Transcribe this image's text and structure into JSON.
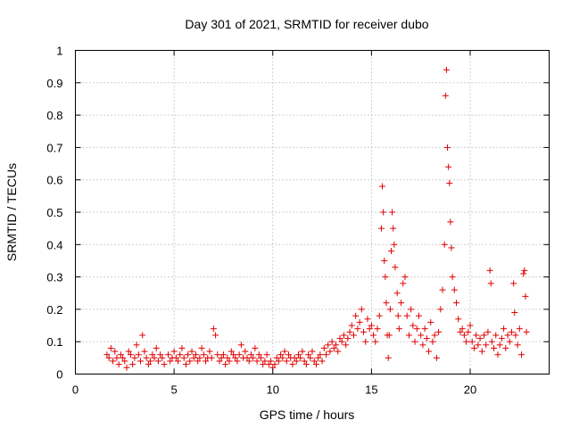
{
  "chart_data": {
    "type": "scatter",
    "title": "Day 301 of 2021, SRMTID for receiver dubo",
    "xlabel": "GPS time / hours",
    "ylabel": "SRMTID / TECUs",
    "xlim": [
      0,
      24
    ],
    "ylim": [
      0,
      1
    ],
    "xticks": [
      0,
      5,
      10,
      15,
      20
    ],
    "xtick_labels": [
      "0",
      "5",
      "10",
      "15",
      "20"
    ],
    "yticks": [
      0,
      0.1,
      0.2,
      0.3,
      0.4,
      0.5,
      0.6,
      0.7,
      0.8,
      0.9,
      1
    ],
    "ytick_labels": [
      "0",
      "0.1",
      "0.2",
      "0.3",
      "0.4",
      "0.5",
      "0.6",
      "0.7",
      "0.8",
      "0.9",
      "1"
    ],
    "grid": true,
    "marker": "+",
    "color": "#e00000",
    "series": [
      {
        "name": "SRMTID",
        "points": [
          [
            1.6,
            0.06
          ],
          [
            1.7,
            0.05
          ],
          [
            1.8,
            0.08
          ],
          [
            1.9,
            0.04
          ],
          [
            2.0,
            0.07
          ],
          [
            2.1,
            0.05
          ],
          [
            2.2,
            0.03
          ],
          [
            2.3,
            0.06
          ],
          [
            2.4,
            0.05
          ],
          [
            2.5,
            0.04
          ],
          [
            2.6,
            0.02
          ],
          [
            2.7,
            0.07
          ],
          [
            2.8,
            0.06
          ],
          [
            2.9,
            0.03
          ],
          [
            3.0,
            0.05
          ],
          [
            3.1,
            0.09
          ],
          [
            3.2,
            0.06
          ],
          [
            3.3,
            0.04
          ],
          [
            3.4,
            0.12
          ],
          [
            3.5,
            0.07
          ],
          [
            3.6,
            0.05
          ],
          [
            3.7,
            0.03
          ],
          [
            3.8,
            0.04
          ],
          [
            3.9,
            0.06
          ],
          [
            4.0,
            0.05
          ],
          [
            4.1,
            0.08
          ],
          [
            4.2,
            0.04
          ],
          [
            4.3,
            0.06
          ],
          [
            4.4,
            0.05
          ],
          [
            4.5,
            0.03
          ],
          [
            4.7,
            0.06
          ],
          [
            4.8,
            0.04
          ],
          [
            4.9,
            0.05
          ],
          [
            5.0,
            0.07
          ],
          [
            5.1,
            0.05
          ],
          [
            5.2,
            0.04
          ],
          [
            5.3,
            0.06
          ],
          [
            5.4,
            0.08
          ],
          [
            5.5,
            0.05
          ],
          [
            5.6,
            0.03
          ],
          [
            5.7,
            0.06
          ],
          [
            5.8,
            0.04
          ],
          [
            5.9,
            0.07
          ],
          [
            6.0,
            0.05
          ],
          [
            6.1,
            0.06
          ],
          [
            6.2,
            0.04
          ],
          [
            6.3,
            0.05
          ],
          [
            6.4,
            0.08
          ],
          [
            6.5,
            0.06
          ],
          [
            6.6,
            0.04
          ],
          [
            6.7,
            0.05
          ],
          [
            6.8,
            0.07
          ],
          [
            6.9,
            0.05
          ],
          [
            7.0,
            0.14
          ],
          [
            7.1,
            0.12
          ],
          [
            7.2,
            0.06
          ],
          [
            7.3,
            0.04
          ],
          [
            7.4,
            0.05
          ],
          [
            7.5,
            0.06
          ],
          [
            7.6,
            0.03
          ],
          [
            7.7,
            0.05
          ],
          [
            7.8,
            0.04
          ],
          [
            7.9,
            0.07
          ],
          [
            8.0,
            0.06
          ],
          [
            8.1,
            0.05
          ],
          [
            8.2,
            0.04
          ],
          [
            8.3,
            0.06
          ],
          [
            8.4,
            0.09
          ],
          [
            8.5,
            0.05
          ],
          [
            8.6,
            0.07
          ],
          [
            8.7,
            0.05
          ],
          [
            8.8,
            0.04
          ],
          [
            8.9,
            0.06
          ],
          [
            9.0,
            0.05
          ],
          [
            9.1,
            0.08
          ],
          [
            9.2,
            0.04
          ],
          [
            9.3,
            0.06
          ],
          [
            9.4,
            0.05
          ],
          [
            9.5,
            0.03
          ],
          [
            9.6,
            0.04
          ],
          [
            9.7,
            0.06
          ],
          [
            9.8,
            0.03
          ],
          [
            9.9,
            0.04
          ],
          [
            10.0,
            0.02
          ],
          [
            10.1,
            0.03
          ],
          [
            10.2,
            0.05
          ],
          [
            10.3,
            0.04
          ],
          [
            10.4,
            0.06
          ],
          [
            10.5,
            0.05
          ],
          [
            10.6,
            0.07
          ],
          [
            10.7,
            0.04
          ],
          [
            10.8,
            0.06
          ],
          [
            10.9,
            0.05
          ],
          [
            11.0,
            0.03
          ],
          [
            11.1,
            0.05
          ],
          [
            11.2,
            0.04
          ],
          [
            11.3,
            0.06
          ],
          [
            11.4,
            0.05
          ],
          [
            11.5,
            0.07
          ],
          [
            11.6,
            0.04
          ],
          [
            11.7,
            0.03
          ],
          [
            11.8,
            0.06
          ],
          [
            11.9,
            0.05
          ],
          [
            12.0,
            0.07
          ],
          [
            12.1,
            0.04
          ],
          [
            12.2,
            0.03
          ],
          [
            12.3,
            0.05
          ],
          [
            12.4,
            0.06
          ],
          [
            12.5,
            0.04
          ],
          [
            12.6,
            0.08
          ],
          [
            12.7,
            0.06
          ],
          [
            12.8,
            0.09
          ],
          [
            12.9,
            0.07
          ],
          [
            13.0,
            0.1
          ],
          [
            13.1,
            0.08
          ],
          [
            13.2,
            0.09
          ],
          [
            13.3,
            0.07
          ],
          [
            13.4,
            0.11
          ],
          [
            13.5,
            0.1
          ],
          [
            13.6,
            0.12
          ],
          [
            13.7,
            0.09
          ],
          [
            13.8,
            0.11
          ],
          [
            13.9,
            0.13
          ],
          [
            14.0,
            0.15
          ],
          [
            14.1,
            0.12
          ],
          [
            14.2,
            0.18
          ],
          [
            14.3,
            0.14
          ],
          [
            14.4,
            0.16
          ],
          [
            14.5,
            0.2
          ],
          [
            14.6,
            0.13
          ],
          [
            14.7,
            0.1
          ],
          [
            14.8,
            0.17
          ],
          [
            14.9,
            0.14
          ],
          [
            15.0,
            0.15
          ],
          [
            15.1,
            0.12
          ],
          [
            15.2,
            0.1
          ],
          [
            15.3,
            0.14
          ],
          [
            15.4,
            0.18
          ],
          [
            15.5,
            0.45
          ],
          [
            15.55,
            0.58
          ],
          [
            15.6,
            0.5
          ],
          [
            15.65,
            0.35
          ],
          [
            15.7,
            0.3
          ],
          [
            15.75,
            0.22
          ],
          [
            15.8,
            0.12
          ],
          [
            15.85,
            0.05
          ],
          [
            15.9,
            0.12
          ],
          [
            15.95,
            0.2
          ],
          [
            16.0,
            0.38
          ],
          [
            16.05,
            0.5
          ],
          [
            16.1,
            0.45
          ],
          [
            16.15,
            0.4
          ],
          [
            16.2,
            0.33
          ],
          [
            16.3,
            0.25
          ],
          [
            16.35,
            0.18
          ],
          [
            16.4,
            0.14
          ],
          [
            16.5,
            0.22
          ],
          [
            16.6,
            0.28
          ],
          [
            16.7,
            0.3
          ],
          [
            16.8,
            0.18
          ],
          [
            16.9,
            0.12
          ],
          [
            17.0,
            0.2
          ],
          [
            17.1,
            0.15
          ],
          [
            17.2,
            0.1
          ],
          [
            17.3,
            0.14
          ],
          [
            17.4,
            0.18
          ],
          [
            17.5,
            0.12
          ],
          [
            17.6,
            0.09
          ],
          [
            17.7,
            0.14
          ],
          [
            17.8,
            0.11
          ],
          [
            17.9,
            0.07
          ],
          [
            18.0,
            0.16
          ],
          [
            18.1,
            0.1
          ],
          [
            18.2,
            0.12
          ],
          [
            18.3,
            0.05
          ],
          [
            18.4,
            0.13
          ],
          [
            18.5,
            0.2
          ],
          [
            18.6,
            0.26
          ],
          [
            18.7,
            0.4
          ],
          [
            18.75,
            0.86
          ],
          [
            18.8,
            0.94
          ],
          [
            18.85,
            0.7
          ],
          [
            18.9,
            0.64
          ],
          [
            18.95,
            0.59
          ],
          [
            19.0,
            0.47
          ],
          [
            19.05,
            0.39
          ],
          [
            19.1,
            0.3
          ],
          [
            19.2,
            0.26
          ],
          [
            19.3,
            0.22
          ],
          [
            19.4,
            0.17
          ],
          [
            19.5,
            0.13
          ],
          [
            19.6,
            0.14
          ],
          [
            19.7,
            0.12
          ],
          [
            19.8,
            0.1
          ],
          [
            19.9,
            0.13
          ],
          [
            20.0,
            0.15
          ],
          [
            20.1,
            0.1
          ],
          [
            20.2,
            0.08
          ],
          [
            20.3,
            0.12
          ],
          [
            20.4,
            0.09
          ],
          [
            20.5,
            0.11
          ],
          [
            20.6,
            0.07
          ],
          [
            20.7,
            0.12
          ],
          [
            20.8,
            0.09
          ],
          [
            20.9,
            0.13
          ],
          [
            21.0,
            0.32
          ],
          [
            21.05,
            0.28
          ],
          [
            21.1,
            0.1
          ],
          [
            21.2,
            0.08
          ],
          [
            21.3,
            0.12
          ],
          [
            21.4,
            0.06
          ],
          [
            21.5,
            0.09
          ],
          [
            21.6,
            0.11
          ],
          [
            21.7,
            0.14
          ],
          [
            21.8,
            0.08
          ],
          [
            21.9,
            0.12
          ],
          [
            22.0,
            0.1
          ],
          [
            22.1,
            0.13
          ],
          [
            22.2,
            0.28
          ],
          [
            22.25,
            0.19
          ],
          [
            22.3,
            0.12
          ],
          [
            22.4,
            0.09
          ],
          [
            22.5,
            0.14
          ],
          [
            22.6,
            0.06
          ],
          [
            22.7,
            0.31
          ],
          [
            22.75,
            0.32
          ],
          [
            22.8,
            0.24
          ],
          [
            22.85,
            0.13
          ]
        ]
      }
    ]
  }
}
